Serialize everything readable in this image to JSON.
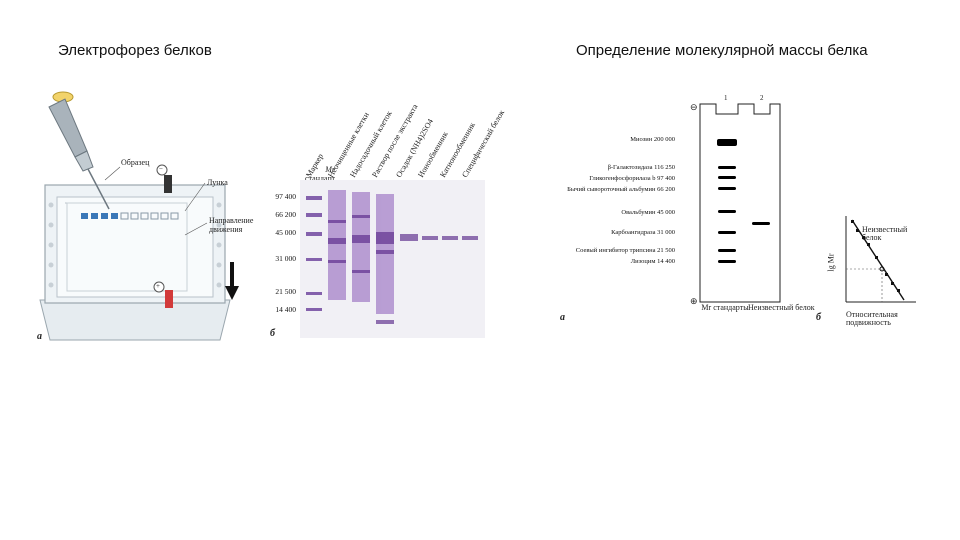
{
  "left": {
    "title": "Электрофорез белков",
    "apparatus": {
      "sample_label": "Образец",
      "well_label": "Лунка",
      "direction_label_1": "Направление",
      "direction_label_2": "движения",
      "minus_sign": "−",
      "plus_sign": "+",
      "panel_letter": "а"
    },
    "gel": {
      "mr_header_1": "Mr",
      "mr_header_2": "стандарт",
      "panel_letter": "б",
      "mr_values": [
        "97 400",
        "66 200",
        "45 000",
        "31 000",
        "21 500",
        "14 400"
      ],
      "lanes": [
        "Маркер",
        "Неочищенные клетки",
        "Надосадочный клеток",
        "Раствор после экстракта",
        "Осадок (NH4)2SO4",
        "Ионообменник",
        "Катионообменник",
        "Специфический белок"
      ]
    }
  },
  "right": {
    "title": "Определение молекулярной массы белка",
    "gel": {
      "lane_numbers": [
        "1",
        "2"
      ],
      "minus_sign": "⊖",
      "plus_sign": "⊕",
      "proteins": [
        {
          "name": "Миозин",
          "mr": "200 000"
        },
        {
          "name": "β-Галактозидаза",
          "mr": "116 250"
        },
        {
          "name": "Гликогенфосфорилаза b",
          "mr": "97 400"
        },
        {
          "name": "Бычий сывороточный альбумин",
          "mr": "66 200"
        },
        {
          "name": "Овальбумин",
          "mr": "45 000"
        },
        {
          "name": "Карбоангидраза",
          "mr": "31 000"
        },
        {
          "name": "Соевый ингибитор трипсина",
          "mr": "21 500"
        },
        {
          "name": "Лизоцим",
          "mr": "14 400"
        }
      ],
      "bottom_label_1": "Mr стандарты",
      "bottom_label_2": "Неизвестный белок",
      "panel_letter": "а"
    },
    "plot": {
      "ylabel": "lg Mr",
      "xlabel_1": "Относительная",
      "xlabel_2": "подвижность",
      "annotation_1": "Неизвестный",
      "annotation_2": "белок",
      "panel_letter": "б"
    }
  }
}
